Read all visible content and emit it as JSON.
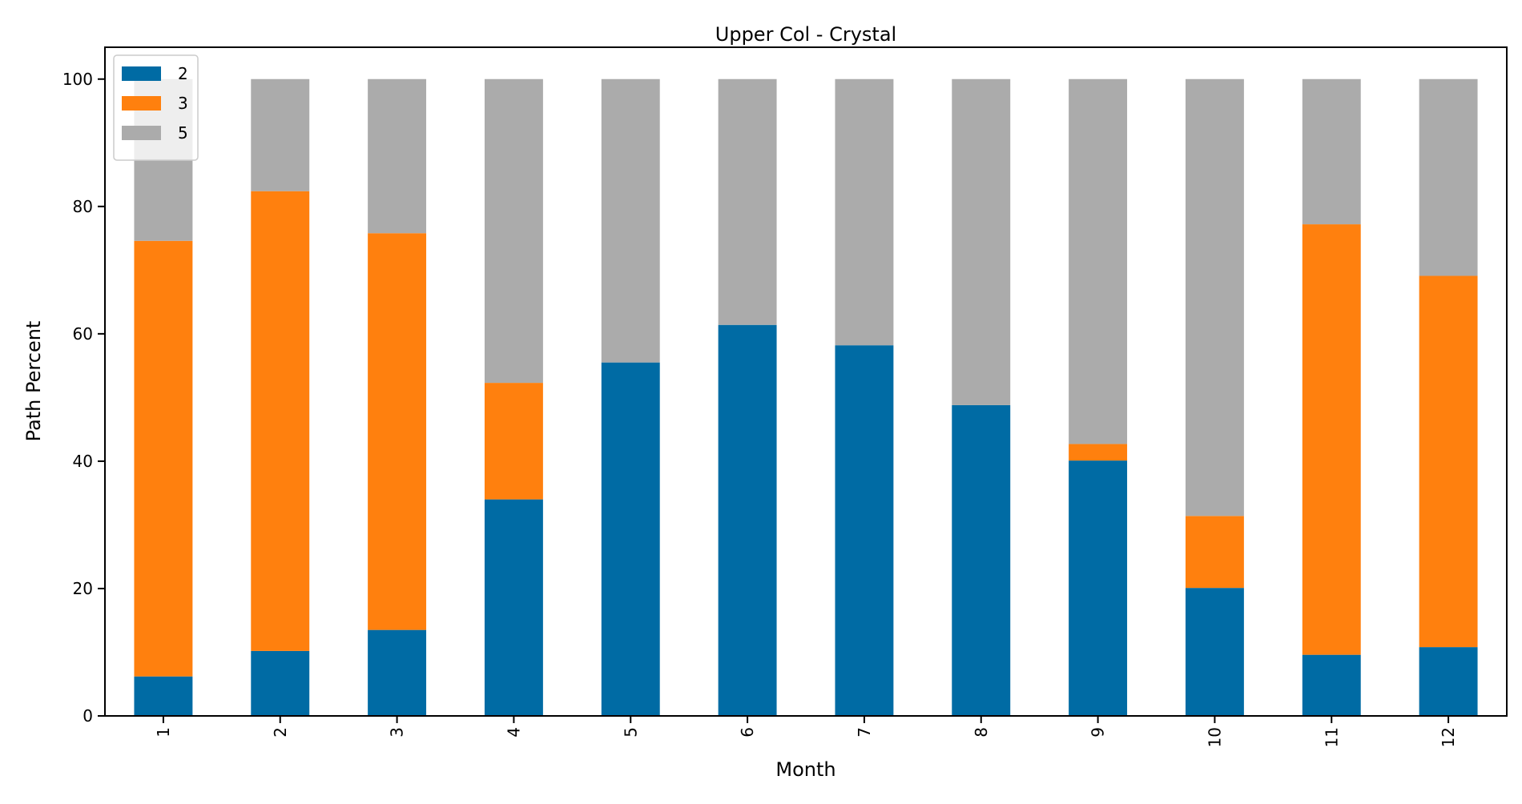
{
  "chart_data": {
    "type": "bar",
    "stacked": true,
    "title": "Upper Col - Crystal",
    "xlabel": "Month",
    "ylabel": "Path Percent",
    "ylim": [
      0,
      105
    ],
    "yticks": [
      0,
      20,
      40,
      60,
      80,
      100
    ],
    "categories": [
      "1",
      "2",
      "3",
      "4",
      "5",
      "6",
      "7",
      "8",
      "9",
      "10",
      "11",
      "12"
    ],
    "series": [
      {
        "name": "2",
        "color": "#006BA4",
        "values": [
          6.2,
          10.2,
          13.5,
          34.0,
          55.5,
          61.4,
          58.2,
          48.8,
          40.1,
          20.1,
          9.6,
          10.8
        ]
      },
      {
        "name": "3",
        "color": "#FF800E",
        "values": [
          68.4,
          72.2,
          62.3,
          18.3,
          0,
          0,
          0,
          0,
          2.6,
          11.3,
          67.6,
          58.3
        ]
      },
      {
        "name": "5",
        "color": "#ABABAB",
        "values": [
          25.4,
          17.6,
          24.2,
          47.7,
          44.5,
          38.6,
          41.8,
          51.2,
          57.3,
          68.6,
          22.8,
          30.9
        ]
      }
    ],
    "legend": {
      "position": "top-left"
    },
    "grid": false,
    "xtick_rotation": 90
  }
}
